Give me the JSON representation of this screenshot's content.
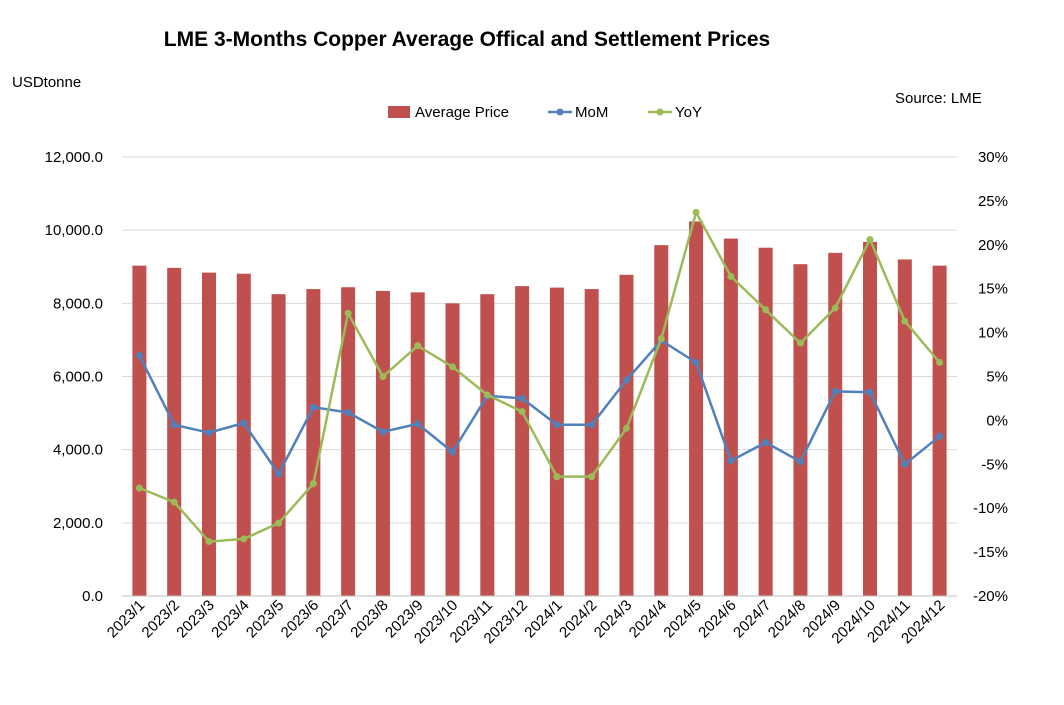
{
  "chart_data": {
    "type": "bar",
    "title": "LME 3-Months Copper  Average Offical and Settlement Prices",
    "ylabel": "USDtonne",
    "source": "Source: LME",
    "legend_position": "top",
    "grid": true,
    "categories": [
      "2023/1",
      "2023/2",
      "2023/3",
      "2023/4",
      "2023/5",
      "2023/6",
      "2023/7",
      "2023/8",
      "2023/9",
      "2023/10",
      "2023/11",
      "2023/12",
      "2024/1",
      "2024/2",
      "2024/3",
      "2024/4",
      "2024/5",
      "2024/6",
      "2024/7",
      "2024/8",
      "2024/9",
      "2024/10",
      "2024/11",
      "2024/12"
    ],
    "y_left": {
      "min": 0,
      "max": 12000,
      "step": 2000,
      "ticks": [
        "0.0",
        "2,000.0",
        "4,000.0",
        "6,000.0",
        "8,000.0",
        "10,000.0",
        "12,000.0"
      ]
    },
    "y_right": {
      "min": -20,
      "max": 30,
      "step": 5,
      "ticks": [
        "-20%",
        "-15%",
        "-10%",
        "-5%",
        "0%",
        "5%",
        "10%",
        "15%",
        "20%",
        "25%",
        "30%"
      ]
    },
    "series": [
      {
        "name": "Average Price",
        "type": "bar",
        "axis": "left",
        "color": "#c0504d",
        "values": [
          9030,
          8970,
          8840,
          8810,
          8250,
          8390,
          8440,
          8340,
          8300,
          8000,
          8250,
          8470,
          8430,
          8390,
          8780,
          9590,
          10240,
          9770,
          9520,
          9070,
          9380,
          9680,
          9200,
          9030
        ]
      },
      {
        "name": "MoM",
        "type": "line",
        "axis": "right",
        "color": "#4f81bd",
        "values": [
          7.4,
          -0.5,
          -1.4,
          -0.3,
          -6.1,
          1.5,
          0.9,
          -1.3,
          -0.4,
          -3.6,
          2.8,
          2.5,
          -0.5,
          -0.5,
          4.6,
          9.1,
          6.6,
          -4.6,
          -2.5,
          -4.7,
          3.3,
          3.2,
          -5.0,
          -1.8
        ]
      },
      {
        "name": "YoY",
        "type": "line",
        "axis": "right",
        "color": "#9bbb59",
        "values": [
          -7.7,
          -9.3,
          -13.8,
          -13.5,
          -11.7,
          -7.2,
          12.2,
          5.0,
          8.5,
          6.1,
          2.9,
          1.0,
          -6.4,
          -6.4,
          -0.9,
          9.3,
          23.7,
          16.4,
          12.6,
          8.8,
          12.8,
          20.6,
          11.3,
          6.6
        ]
      }
    ]
  }
}
